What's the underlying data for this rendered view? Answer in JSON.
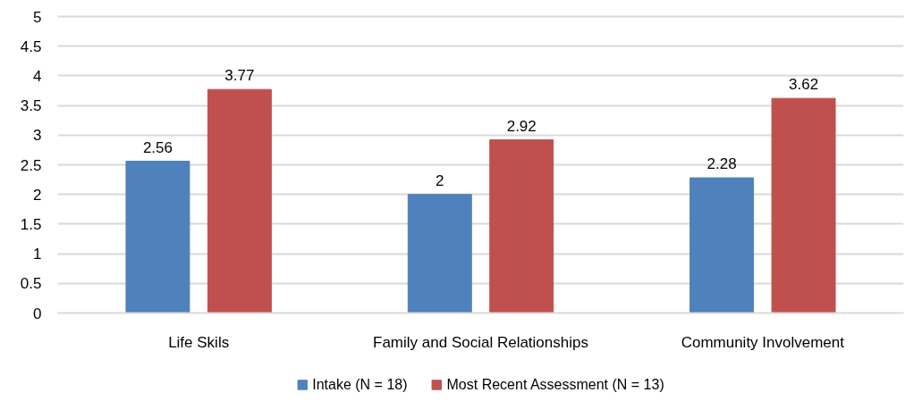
{
  "chart_data": {
    "type": "bar",
    "categories": [
      "Life Skils",
      "Family and Social Relationships",
      "Community Involvement"
    ],
    "series": [
      {
        "name": "Intake (N = 18)",
        "color": "#4f81bd",
        "values": [
          2.56,
          2,
          2.28
        ]
      },
      {
        "name": "Most Recent Assessment (N = 13)",
        "color": "#c0504d",
        "values": [
          3.77,
          2.92,
          3.62
        ]
      }
    ],
    "ylim": [
      0,
      5
    ],
    "yticks": [
      0,
      0.5,
      1,
      1.5,
      2,
      2.5,
      3,
      3.5,
      4,
      4.5,
      5
    ],
    "grid": "y",
    "legend": "bottom",
    "data_labels": true
  }
}
